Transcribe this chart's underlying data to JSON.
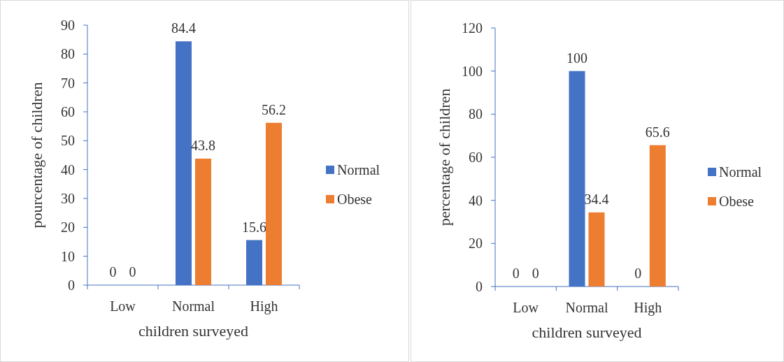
{
  "chart_data": [
    {
      "type": "bar",
      "xlabel": "children surveyed",
      "ylabel": "pourcentage of children",
      "categories": [
        "Low",
        "Normal",
        "High"
      ],
      "series": [
        {
          "name": "Normal",
          "color": "#4472c4",
          "values": [
            0,
            84.4,
            15.6
          ]
        },
        {
          "name": "Obese",
          "color": "#ed7d31",
          "values": [
            0,
            43.8,
            56.2
          ]
        }
      ],
      "ylim": [
        0,
        90
      ],
      "yticks": [
        0,
        10,
        20,
        30,
        40,
        50,
        60,
        70,
        80,
        90
      ],
      "data_labels": true,
      "legend": "right",
      "grid": false
    },
    {
      "type": "bar",
      "xlabel": "children surveyed",
      "ylabel": "percentage of children",
      "categories": [
        "Low",
        "Normal",
        "High"
      ],
      "series": [
        {
          "name": "Normal",
          "color": "#4472c4",
          "values": [
            0,
            100,
            0
          ]
        },
        {
          "name": "Obese",
          "color": "#ed7d31",
          "values": [
            0,
            34.4,
            65.6
          ]
        }
      ],
      "ylim": [
        0,
        120
      ],
      "yticks": [
        0,
        20,
        40,
        60,
        80,
        100,
        120
      ],
      "data_labels": true,
      "legend": "right",
      "grid": false
    }
  ]
}
